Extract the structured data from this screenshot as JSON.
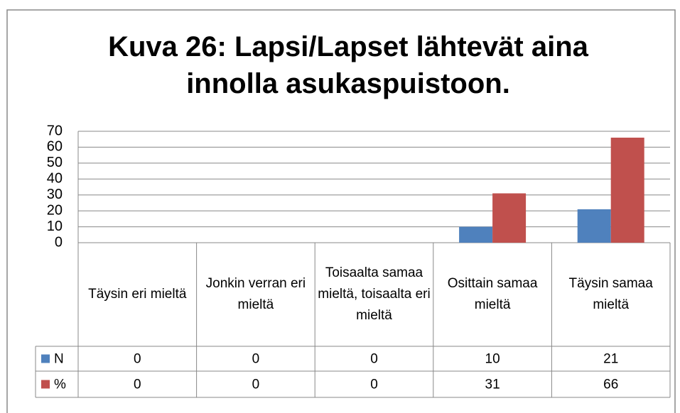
{
  "chart_data": {
    "type": "bar",
    "title": "Kuva 26: Lapsi/Lapset lähtevät aina innolla asukaspuistoon.",
    "categories": [
      "Täysin eri mieltä",
      "Jonkin verran eri mieltä",
      "Toisaalta samaa mieltä, toisaalta eri mieltä",
      "Osittain samaa mieltä",
      "Täysin samaa mieltä"
    ],
    "series": [
      {
        "name": "N",
        "color": "#4f81bd",
        "values": [
          0,
          0,
          0,
          10,
          21
        ]
      },
      {
        "name": "%",
        "color": "#c0504d",
        "values": [
          0,
          0,
          0,
          31,
          66
        ]
      }
    ],
    "ylim": [
      0,
      70
    ],
    "yticks": [
      0,
      10,
      20,
      30,
      40,
      50,
      60,
      70
    ],
    "grid": true,
    "legend": "table"
  }
}
